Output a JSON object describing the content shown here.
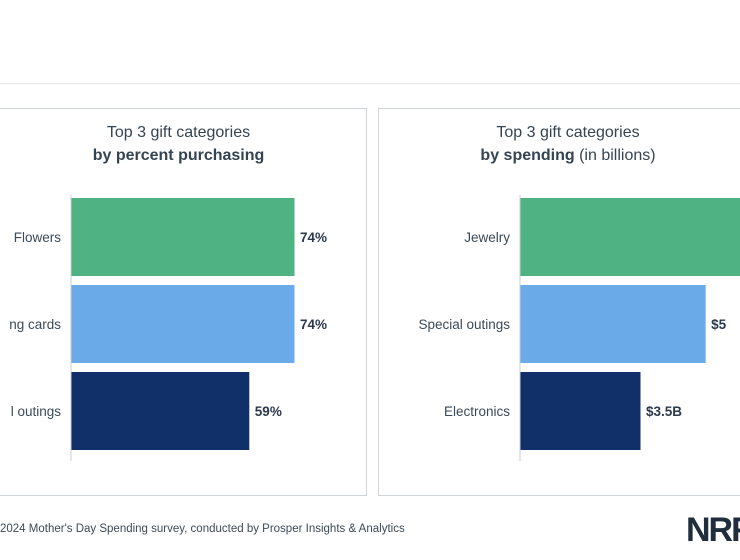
{
  "chart_data": [
    {
      "type": "bar",
      "orientation": "horizontal",
      "title_line1": "Top 3 gift categories",
      "title_bold": "by percent purchasing",
      "title_suffix": "",
      "categories": [
        "Flowers",
        "Greeting cards",
        "Special outings"
      ],
      "visible_category_labels": [
        "Flowers",
        "ng cards",
        "l outings"
      ],
      "values": [
        74,
        74,
        59
      ],
      "value_labels": [
        "74%",
        "74%",
        "59%"
      ],
      "colors": [
        "#4fb282",
        "#6aaae8",
        "#11306a"
      ],
      "xlim": [
        0,
        74
      ]
    },
    {
      "type": "bar",
      "orientation": "horizontal",
      "title_line1": "Top 3 gift categories",
      "title_bold": "by spending",
      "title_suffix": " (in billions)",
      "categories": [
        "Jewelry",
        "Special outings",
        "Electronics"
      ],
      "visible_category_labels": [
        "Jewelry",
        "Special outings",
        "Electronics"
      ],
      "values": [
        7.0,
        5.4,
        3.5
      ],
      "value_labels": [
        "",
        "$5",
        "$3.5B"
      ],
      "colors": [
        "#4fb282",
        "#6aaae8",
        "#11306a"
      ],
      "xlim": [
        0,
        7.0
      ]
    }
  ],
  "footer": {
    "source": "2024 Mother's Day Spending survey, conducted by Prosper Insights & Analytics",
    "logo": "NRF"
  }
}
